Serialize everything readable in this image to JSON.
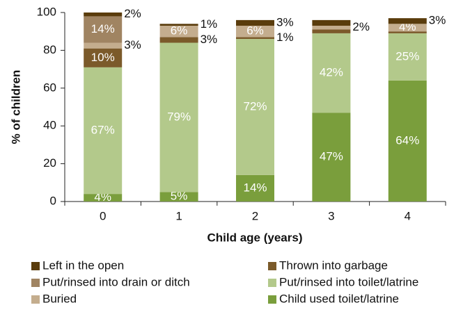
{
  "chart_data": {
    "type": "stacked_bar",
    "xlabel": "Child age (years)",
    "ylabel": "% of children",
    "categories": [
      "0",
      "1",
      "2",
      "3",
      "4"
    ],
    "ylim": [
      0,
      100
    ],
    "yticks": [
      0,
      20,
      40,
      60,
      80,
      100
    ],
    "series": [
      {
        "name": "Child used toilet/latrine",
        "color": "#7a9e3c",
        "values": [
          4,
          5,
          14,
          47,
          64
        ],
        "value_labels": [
          "4%",
          "5%",
          "14%",
          "47%",
          "64%"
        ]
      },
      {
        "name": "Put/rinsed into toilet/latrine",
        "color": "#b3c98b",
        "values": [
          67,
          79,
          72,
          42,
          25
        ],
        "value_labels": [
          "67%",
          "79%",
          "72%",
          "42%",
          "25%"
        ]
      },
      {
        "name": "Thrown into garbage",
        "color": "#7b5a2a",
        "values": [
          10,
          3,
          1,
          2,
          1
        ],
        "value_labels": [
          "10%",
          "3%",
          "1%",
          null,
          null
        ]
      },
      {
        "name": "Buried",
        "color": "#c4ad8e",
        "values": [
          3,
          6,
          6,
          2,
          4
        ],
        "value_labels": [
          "3%",
          "6%",
          "6%",
          "2%",
          "4%"
        ]
      },
      {
        "name": "Put/rinsed into drain or ditch",
        "color": "#a08462",
        "values": [
          14,
          0,
          0,
          0,
          0
        ],
        "value_labels": [
          "14%",
          null,
          null,
          null,
          null
        ]
      },
      {
        "name": "Left in the open",
        "color": "#5a3c0c",
        "values": [
          2,
          1,
          3,
          3,
          3
        ],
        "value_labels": [
          "2%",
          "1%",
          "3%",
          null,
          "3%"
        ]
      }
    ],
    "legend_order": [
      5,
      2,
      4,
      1,
      3,
      0
    ]
  }
}
